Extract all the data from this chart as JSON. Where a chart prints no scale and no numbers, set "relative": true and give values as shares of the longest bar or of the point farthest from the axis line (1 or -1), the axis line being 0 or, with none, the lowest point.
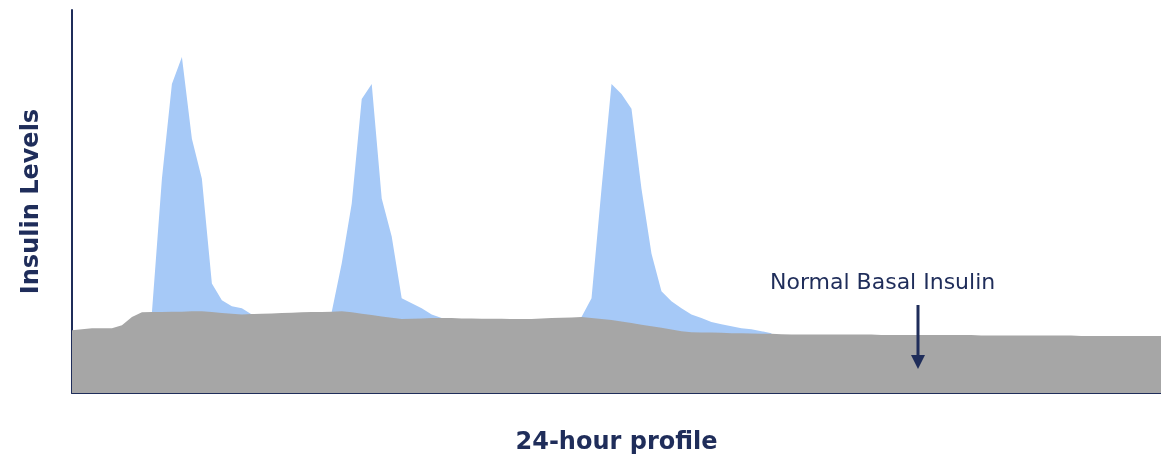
{
  "chart_data": {
    "type": "area",
    "relative": true,
    "xlabel": "24-hour profile",
    "ylabel": "Insulin Levels",
    "annotations": [
      "Normal Basal Insulin"
    ],
    "grid": false,
    "marker": "none",
    "categories": [
      null,
      null,
      null,
      null,
      null,
      null,
      null,
      null,
      null,
      null,
      null,
      null,
      null,
      null,
      null,
      null,
      null,
      null,
      null,
      null,
      null,
      null,
      null,
      null,
      null,
      null,
      null,
      null,
      null,
      null,
      null,
      null,
      null,
      null,
      null,
      null,
      null,
      null,
      null,
      null,
      null,
      null,
      null,
      null,
      null,
      null,
      null,
      null,
      null,
      null,
      null,
      null,
      null,
      null,
      null,
      null,
      null,
      null,
      null,
      null,
      null,
      null,
      null,
      null,
      null,
      null,
      null,
      null,
      null,
      null,
      null,
      null,
      null,
      null,
      null,
      null,
      null,
      null,
      null,
      null,
      null,
      null,
      null,
      null,
      null,
      null,
      null,
      null,
      null,
      null,
      null,
      null,
      null,
      null,
      null,
      null,
      null,
      null,
      null,
      null,
      null,
      null,
      null,
      null,
      null,
      null,
      null,
      null,
      null,
      null
    ],
    "series": [
      {
        "color": "#a6c9f7",
        "values": [
          null,
          null,
          null,
          null,
          null,
          null,
          null,
          null,
          0.24,
          0.638,
          0.92,
          1.0,
          0.757,
          0.638,
          0.326,
          0.276,
          0.258,
          0.252,
          0.234,
          null,
          null,
          null,
          null,
          null,
          null,
          null,
          0.242,
          0.386,
          0.564,
          0.875,
          0.92,
          0.579,
          0.466,
          0.282,
          0.267,
          0.252,
          0.234,
          0.223,
          null,
          null,
          null,
          null,
          null,
          null,
          null,
          null,
          null,
          null,
          null,
          null,
          null,
          0.226,
          0.282,
          0.608,
          0.92,
          0.89,
          0.846,
          0.608,
          0.415,
          0.303,
          0.273,
          0.252,
          0.234,
          0.223,
          0.211,
          0.205,
          0.199,
          0.193,
          0.19,
          0.184,
          0.178,
          null,
          null,
          null,
          null,
          null,
          null,
          null,
          null,
          null,
          null,
          null,
          null,
          null,
          null,
          null,
          null,
          null,
          null,
          null,
          null,
          null,
          null,
          null,
          null,
          null,
          null,
          null,
          null,
          null,
          null,
          null,
          null,
          null,
          null,
          null,
          null,
          null,
          null,
          null
        ]
      },
      {
        "color": "#a6a6a6",
        "values": [
          0.187,
          0.19,
          0.193,
          0.193,
          0.193,
          0.202,
          0.226,
          0.24,
          0.241,
          0.241,
          0.242,
          0.242,
          0.243,
          0.243,
          0.241,
          0.238,
          0.236,
          0.234,
          0.235,
          0.236,
          0.237,
          0.238,
          0.239,
          0.24,
          0.241,
          0.241,
          0.242,
          0.243,
          0.24,
          0.236,
          0.232,
          0.228,
          0.224,
          0.22,
          0.221,
          0.222,
          0.223,
          0.223,
          0.223,
          0.222,
          0.222,
          0.221,
          0.221,
          0.221,
          0.22,
          0.22,
          0.22,
          0.222,
          0.223,
          0.224,
          0.225,
          0.226,
          0.223,
          0.22,
          0.217,
          0.213,
          0.208,
          0.203,
          0.199,
          0.194,
          0.189,
          0.184,
          0.181,
          0.18,
          0.18,
          0.179,
          0.178,
          0.178,
          0.177,
          0.176,
          0.176,
          0.175,
          0.174,
          0.174,
          0.174,
          0.174,
          0.174,
          0.174,
          0.174,
          0.174,
          0.174,
          0.173,
          0.173,
          0.173,
          0.173,
          0.173,
          0.173,
          0.173,
          0.173,
          0.173,
          0.173,
          0.171,
          0.171,
          0.171,
          0.171,
          0.171,
          0.171,
          0.171,
          0.171,
          0.171,
          0.171,
          0.17,
          0.17,
          0.17,
          0.17,
          0.17,
          0.17,
          0.17,
          0.17,
          0.17
        ]
      }
    ]
  }
}
